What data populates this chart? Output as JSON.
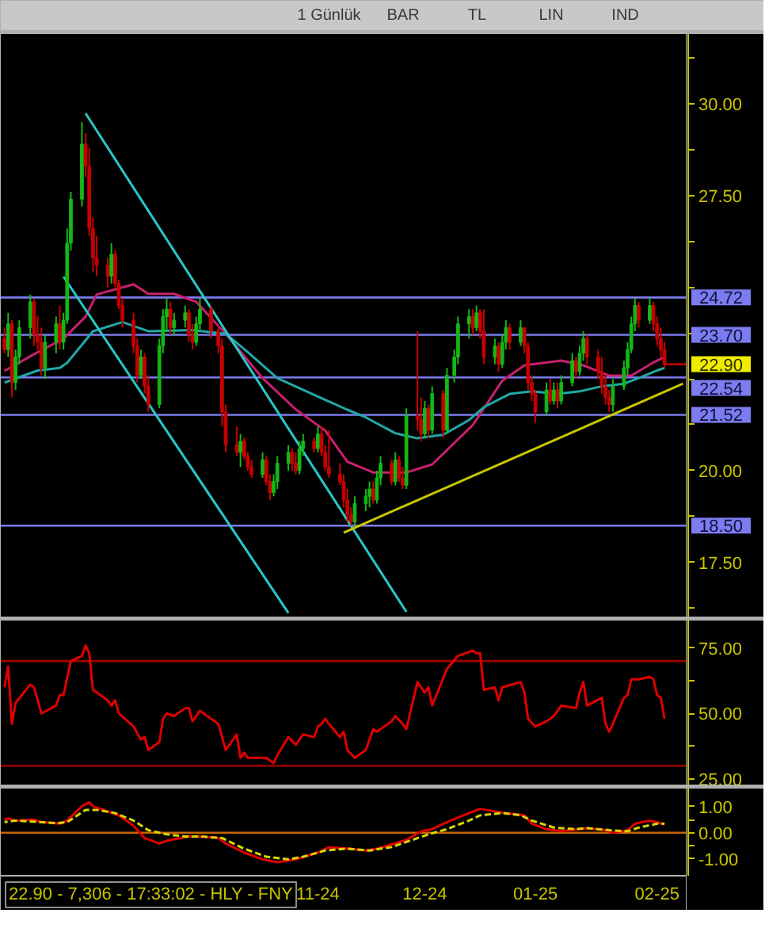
{
  "chart_data": [
    {
      "type": "other",
      "annotations": [
        "1 Günlük",
        "BAR",
        "TL",
        "LIN",
        "IND"
      ]
    },
    {
      "type": "candlestick",
      "x": [
        "2024-09-02",
        "2024-09-03",
        "2024-09-04",
        "2024-09-05",
        "2024-09-06",
        "2024-09-09",
        "2024-09-10",
        "2024-09-11",
        "2024-09-12",
        "2024-09-13",
        "2024-09-16",
        "2024-09-17",
        "2024-09-18",
        "2024-09-19",
        "2024-09-20",
        "2024-09-23",
        "2024-09-24",
        "2024-09-25",
        "2024-09-26",
        "2024-09-27",
        "2024-09-30",
        "2024-10-01",
        "2024-10-02",
        "2024-10-03",
        "2024-10-04",
        "2024-10-07",
        "2024-10-08",
        "2024-10-09",
        "2024-10-10",
        "2024-10-11",
        "2024-10-14",
        "2024-10-15",
        "2024-10-16",
        "2024-10-17",
        "2024-10-18",
        "2024-10-21",
        "2024-10-22",
        "2024-10-23",
        "2024-10-24",
        "2024-10-25",
        "2024-10-28",
        "2024-10-30",
        "2024-10-31",
        "2024-11-01",
        "2024-11-04",
        "2024-11-05",
        "2024-11-06",
        "2024-11-07",
        "2024-11-08",
        "2024-11-11",
        "2024-11-12",
        "2024-11-13",
        "2024-11-14",
        "2024-11-15",
        "2024-11-18",
        "2024-11-19",
        "2024-11-20",
        "2024-11-21",
        "2024-11-22",
        "2024-11-25",
        "2024-11-26",
        "2024-11-27",
        "2024-11-28",
        "2024-11-29",
        "2024-12-02",
        "2024-12-03",
        "2024-12-04",
        "2024-12-05",
        "2024-12-06",
        "2024-12-09",
        "2024-12-10",
        "2024-12-11",
        "2024-12-12",
        "2024-12-13",
        "2024-12-16",
        "2024-12-17",
        "2024-12-18",
        "2024-12-19",
        "2024-12-20",
        "2024-12-23",
        "2024-12-24",
        "2024-12-25",
        "2024-12-26",
        "2024-12-27",
        "2024-12-30",
        "2024-12-31",
        "2025-01-02",
        "2025-01-03",
        "2025-01-06",
        "2025-01-07",
        "2025-01-08",
        "2025-01-09",
        "2025-01-10",
        "2025-01-13",
        "2025-01-14",
        "2025-01-15",
        "2025-01-16",
        "2025-01-17",
        "2025-01-20",
        "2025-01-21",
        "2025-01-22",
        "2025-01-23",
        "2025-01-24",
        "2025-01-27",
        "2025-01-28",
        "2025-01-29",
        "2025-01-30",
        "2025-01-31",
        "2025-02-03",
        "2025-02-04",
        "2025-02-05",
        "2025-02-06",
        "2025-02-07",
        "2025-02-10",
        "2025-02-11",
        "2025-02-12",
        "2025-02-13",
        "2025-02-14",
        "2025-02-17",
        "2025-02-18",
        "2025-02-19",
        "2025-02-20",
        "2025-02-21",
        "2025-02-24",
        "2025-02-25",
        "2025-02-26",
        "2025-02-27",
        "2025-02-28"
      ],
      "ohlc": [
        [
          23.6,
          23.9,
          23.2,
          23.3
        ],
        [
          23.3,
          24.3,
          23.1,
          24.0
        ],
        [
          24.0,
          24.1,
          22.0,
          22.4
        ],
        [
          22.4,
          23.3,
          22.2,
          23.1
        ],
        [
          23.1,
          24.1,
          22.9,
          23.9
        ],
        [
          23.9,
          24.8,
          23.6,
          24.6
        ],
        [
          24.6,
          24.7,
          23.4,
          23.7
        ],
        [
          23.7,
          24.2,
          23.3,
          23.5
        ],
        [
          23.5,
          23.9,
          22.6,
          22.8
        ],
        [
          22.8,
          23.7,
          22.5,
          23.5
        ],
        [
          23.5,
          24.2,
          23.2,
          24.0
        ],
        [
          24.0,
          24.5,
          23.3,
          23.5
        ],
        [
          23.5,
          24.3,
          23.3,
          24.1
        ],
        [
          24.1,
          26.6,
          24.0,
          26.2
        ],
        [
          26.2,
          27.6,
          26.0,
          27.4
        ],
        [
          27.4,
          29.5,
          27.2,
          28.9
        ],
        [
          28.9,
          29.2,
          28.0,
          28.3
        ],
        [
          28.3,
          28.8,
          26.4,
          26.6
        ],
        [
          26.6,
          26.9,
          25.4,
          25.8
        ],
        [
          25.8,
          26.4,
          25.3,
          25.6
        ],
        [
          25.6,
          25.8,
          25.0,
          25.3
        ],
        [
          25.3,
          26.2,
          25.1,
          25.9
        ],
        [
          25.9,
          26.0,
          25.0,
          25.1
        ],
        [
          25.1,
          25.2,
          24.4,
          24.5
        ],
        [
          24.5,
          24.7,
          23.9,
          24.1
        ],
        [
          24.1,
          24.3,
          23.2,
          23.4
        ],
        [
          23.4,
          23.6,
          22.4,
          22.6
        ],
        [
          22.6,
          23.3,
          22.5,
          23.1
        ],
        [
          23.1,
          23.2,
          22.1,
          22.3
        ],
        [
          22.3,
          22.6,
          21.6,
          21.8
        ],
        [
          21.8,
          23.6,
          21.7,
          23.4
        ],
        [
          23.4,
          24.4,
          23.2,
          24.2
        ],
        [
          24.2,
          24.7,
          23.8,
          24.4
        ],
        [
          24.4,
          24.6,
          23.7,
          23.9
        ],
        [
          23.9,
          24.3,
          23.7,
          24.1
        ],
        [
          24.1,
          24.5,
          23.9,
          24.3
        ],
        [
          24.3,
          24.4,
          23.5,
          23.7
        ],
        [
          23.7,
          24.0,
          23.3,
          23.5
        ],
        [
          23.5,
          24.2,
          23.4,
          24.0
        ],
        [
          24.0,
          24.7,
          23.8,
          24.4
        ],
        [
          24.4,
          24.5,
          23.6,
          23.8
        ],
        [
          23.8,
          24.0,
          23.2,
          23.4
        ],
        [
          23.4,
          23.6,
          21.2,
          21.6
        ],
        [
          21.6,
          21.8,
          20.5,
          20.7
        ],
        [
          20.7,
          21.2,
          20.4,
          20.5
        ],
        [
          20.5,
          21.0,
          20.1,
          20.8
        ],
        [
          20.8,
          20.9,
          20.3,
          20.4
        ],
        [
          20.4,
          20.5,
          20.0,
          20.1
        ],
        [
          20.1,
          20.3,
          19.8,
          19.9
        ],
        [
          19.9,
          20.5,
          19.8,
          20.3
        ],
        [
          20.3,
          20.4,
          19.6,
          19.7
        ],
        [
          19.7,
          19.9,
          19.2,
          19.4
        ],
        [
          19.4,
          19.9,
          19.3,
          19.7
        ],
        [
          19.7,
          20.4,
          19.5,
          20.2
        ],
        [
          20.2,
          20.7,
          20.0,
          20.5
        ],
        [
          20.5,
          20.6,
          20.0,
          20.2
        ],
        [
          20.2,
          20.5,
          19.9,
          20.0
        ],
        [
          20.0,
          20.8,
          19.9,
          20.6
        ],
        [
          20.6,
          21.0,
          20.4,
          20.8
        ],
        [
          20.8,
          20.9,
          20.5,
          20.6
        ],
        [
          20.6,
          21.2,
          20.5,
          21.0
        ],
        [
          21.0,
          21.2,
          20.4,
          20.5
        ],
        [
          20.5,
          20.7,
          20.0,
          20.1
        ],
        [
          20.1,
          21.1,
          19.8,
          19.9
        ],
        [
          19.9,
          20.2,
          19.6,
          19.7
        ],
        [
          19.7,
          19.9,
          19.0,
          19.2
        ],
        [
          19.2,
          19.5,
          18.6,
          18.8
        ],
        [
          18.8,
          19.0,
          18.5,
          18.6
        ],
        [
          18.6,
          19.3,
          18.5,
          19.1
        ],
        [
          19.1,
          19.5,
          18.9,
          19.3
        ],
        [
          19.3,
          19.7,
          19.0,
          19.5
        ],
        [
          19.5,
          19.7,
          19.1,
          19.2
        ],
        [
          19.2,
          20.0,
          19.1,
          19.8
        ],
        [
          19.8,
          20.4,
          19.6,
          20.2
        ],
        [
          20.2,
          20.3,
          19.6,
          19.7
        ],
        [
          19.7,
          20.5,
          19.6,
          20.3
        ],
        [
          20.3,
          20.4,
          19.7,
          19.8
        ],
        [
          19.8,
          20.1,
          19.5,
          19.6
        ],
        [
          19.6,
          21.7,
          19.5,
          21.5
        ],
        [
          21.5,
          23.8,
          21.1,
          21.4
        ],
        [
          21.4,
          22.0,
          20.8,
          21.0
        ],
        [
          21.0,
          21.9,
          20.9,
          21.7
        ],
        [
          21.7,
          21.8,
          20.9,
          21.1
        ],
        [
          21.1,
          22.3,
          21.0,
          22.1
        ],
        [
          22.1,
          22.2,
          20.9,
          21.1
        ],
        [
          21.1,
          22.8,
          21.0,
          22.6
        ],
        [
          22.6,
          23.3,
          22.4,
          23.1
        ],
        [
          23.1,
          24.2,
          22.9,
          24.0
        ],
        [
          24.0,
          24.4,
          23.6,
          24.2
        ],
        [
          24.2,
          24.4,
          23.7,
          23.9
        ],
        [
          23.9,
          24.5,
          23.8,
          24.3
        ],
        [
          24.3,
          24.4,
          23.6,
          23.8
        ],
        [
          23.8,
          24.4,
          22.9,
          23.1
        ],
        [
          23.1,
          23.6,
          22.9,
          23.4
        ],
        [
          23.4,
          23.5,
          22.7,
          22.9
        ],
        [
          22.9,
          23.7,
          22.8,
          23.5
        ],
        [
          23.5,
          24.1,
          23.3,
          23.9
        ],
        [
          23.9,
          24.0,
          23.3,
          23.5
        ],
        [
          23.5,
          24.1,
          23.4,
          23.9
        ],
        [
          23.9,
          23.9,
          23.2,
          23.4
        ],
        [
          23.4,
          23.5,
          22.2,
          22.4
        ],
        [
          22.4,
          22.6,
          21.9,
          22.1
        ],
        [
          22.1,
          22.2,
          21.3,
          21.6
        ],
        [
          21.6,
          22.4,
          21.5,
          22.2
        ],
        [
          22.2,
          22.5,
          21.8,
          21.9
        ],
        [
          21.9,
          22.4,
          21.8,
          22.2
        ],
        [
          22.2,
          22.4,
          21.7,
          21.9
        ],
        [
          21.9,
          22.6,
          21.8,
          22.4
        ],
        [
          22.4,
          23.2,
          22.3,
          23.0
        ],
        [
          23.0,
          23.1,
          22.5,
          22.7
        ],
        [
          22.7,
          23.4,
          22.6,
          23.2
        ],
        [
          23.2,
          23.8,
          23.0,
          23.6
        ],
        [
          23.6,
          23.7,
          22.9,
          23.1
        ],
        [
          23.1,
          23.3,
          22.5,
          22.7
        ],
        [
          22.7,
          23.1,
          22.1,
          22.3
        ],
        [
          22.3,
          22.6,
          21.8,
          22.0
        ],
        [
          22.0,
          22.2,
          21.6,
          21.8
        ],
        [
          21.8,
          22.5,
          21.6,
          22.3
        ],
        [
          22.3,
          23.0,
          22.2,
          22.8
        ],
        [
          22.8,
          23.5,
          22.6,
          23.3
        ],
        [
          23.3,
          24.2,
          23.2,
          24.0
        ],
        [
          24.0,
          24.7,
          23.8,
          24.5
        ],
        [
          24.5,
          24.6,
          23.9,
          24.1
        ],
        [
          24.1,
          24.7,
          24.0,
          24.5
        ],
        [
          24.5,
          24.6,
          23.8,
          24.0
        ],
        [
          24.0,
          24.2,
          23.4,
          23.6
        ],
        [
          23.6,
          23.9,
          23.1,
          23.3
        ],
        [
          23.3,
          23.5,
          22.8,
          22.9
        ]
      ],
      "series": [
        {
          "type": "line",
          "color": "#c8206e",
          "x": [
            "2024-09-02",
            "2024-09-11",
            "2024-09-18",
            "2024-09-24",
            "2024-09-27",
            "2024-10-07",
            "2024-10-11",
            "2024-10-18",
            "2024-10-24",
            "2024-11-01",
            "2024-11-11",
            "2024-11-20",
            "2024-11-28",
            "2024-12-04",
            "2024-12-11",
            "2024-12-20",
            "2024-12-27",
            "2025-01-07",
            "2025-01-15",
            "2025-01-21",
            "2025-01-31",
            "2025-02-06",
            "2025-02-13",
            "2025-02-19",
            "2025-02-25",
            "2025-02-28"
          ],
          "values": [
            22.72,
            23.23,
            23.59,
            24.2,
            24.8,
            25.08,
            24.82,
            24.82,
            24.6,
            23.73,
            22.52,
            21.67,
            21.09,
            20.24,
            19.95,
            19.95,
            20.17,
            21.24,
            22.45,
            22.87,
            23.0,
            22.87,
            22.59,
            22.59,
            22.95,
            23.1
          ]
        },
        {
          "type": "line",
          "color": "#20a8a8",
          "x": [
            "2024-09-02",
            "2024-09-11",
            "2024-09-17",
            "2024-09-19",
            "2024-09-26",
            "2024-10-04",
            "2024-10-11",
            "2024-10-23",
            "2024-11-01",
            "2024-11-07",
            "2024-11-15",
            "2024-11-26",
            "2024-12-04",
            "2024-12-09",
            "2024-12-17",
            "2024-12-23",
            "2024-12-30",
            "2025-01-06",
            "2025-01-10",
            "2025-01-17",
            "2025-01-23",
            "2025-01-30",
            "2025-02-05",
            "2025-02-11",
            "2025-02-17",
            "2025-02-21",
            "2025-02-26",
            "2025-02-28"
          ],
          "values": [
            22.4,
            22.73,
            22.8,
            22.94,
            23.8,
            24.05,
            23.8,
            23.83,
            23.73,
            23.23,
            22.52,
            22.02,
            21.66,
            21.45,
            21.02,
            20.88,
            20.98,
            21.38,
            21.73,
            22.09,
            22.16,
            22.09,
            22.16,
            22.3,
            22.37,
            22.52,
            22.73,
            22.8
          ]
        },
        {
          "type": "line",
          "color": "#28c8c8",
          "x": [
            "2024-09-24",
            "2024-12-20"
          ],
          "values": [
            29.74,
            16.15
          ]
        },
        {
          "type": "line",
          "color": "#28c8c8",
          "x": [
            "2024-09-18",
            "2024-11-18"
          ],
          "values": [
            25.29,
            16.12
          ]
        },
        {
          "type": "line",
          "color": "#c8c800",
          "x": [
            "2024-12-03",
            "2025-03-05"
          ],
          "values": [
            18.31,
            22.37
          ]
        }
      ],
      "xlim": [
        "2024-09-01",
        "2025-03-06"
      ],
      "ylim": [
        16,
        31.9
      ],
      "yticks": [
        {
          "value": 16.25,
          "label": null
        },
        {
          "value": 17.5,
          "label": "17.50"
        },
        {
          "value": 18.75,
          "label": null
        },
        {
          "value": 20,
          "label": "20.00"
        },
        {
          "value": 21.25,
          "label": null
        },
        {
          "value": 22.5,
          "label": null
        },
        {
          "value": 23.75,
          "label": null
        },
        {
          "value": 25,
          "label": null
        },
        {
          "value": 26.25,
          "label": null
        },
        {
          "value": 27.5,
          "label": "27.50"
        },
        {
          "value": 28.75,
          "label": null
        },
        {
          "value": 30,
          "label": "30.00"
        },
        {
          "value": 31.25,
          "label": null
        }
      ],
      "tick_labels": "y",
      "ref_lines": [
        {
          "axis": "y",
          "value": 24.72,
          "label": "24.72",
          "color": "#7c7cf0"
        },
        {
          "axis": "y",
          "value": 23.7,
          "label": "23.70",
          "color": "#7c7cf0"
        },
        {
          "axis": "y",
          "value": 22.54,
          "label": "22.54",
          "color": "#7c7cf0"
        },
        {
          "axis": "y",
          "value": 21.52,
          "label": "21.52",
          "color": "#7c7cf0"
        },
        {
          "axis": "y",
          "value": 18.5,
          "label": "18.50",
          "color": "#7c7cf0"
        }
      ],
      "annotations": [
        {
          "text": "22.90",
          "x": "2025-02-28",
          "y": 22.9
        }
      ]
    },
    {
      "type": "line",
      "series": [
        {
          "color": "#e00000",
          "x": [
            "2024-09-02",
            "2024-09-03",
            "2024-09-04",
            "2024-09-05",
            "2024-09-09",
            "2024-09-10",
            "2024-09-12",
            "2024-09-16",
            "2024-09-17",
            "2024-09-18",
            "2024-09-20",
            "2024-09-23",
            "2024-09-24",
            "2024-09-25",
            "2024-09-26",
            "2024-09-30",
            "2024-10-01",
            "2024-10-02",
            "2024-10-03",
            "2024-10-07",
            "2024-10-09",
            "2024-10-10",
            "2024-10-11",
            "2024-10-14",
            "2024-10-15",
            "2024-10-16",
            "2024-10-18",
            "2024-10-21",
            "2024-10-22",
            "2024-10-23",
            "2024-10-25",
            "2024-10-28",
            "2024-10-30",
            "2024-11-01",
            "2024-11-04",
            "2024-11-05",
            "2024-11-06",
            "2024-11-07",
            "2024-11-11",
            "2024-11-12",
            "2024-11-14",
            "2024-11-15",
            "2024-11-18",
            "2024-11-20",
            "2024-11-22",
            "2024-11-25",
            "2024-11-26",
            "2024-11-27",
            "2024-11-28",
            "2024-11-29",
            "2024-12-02",
            "2024-12-03",
            "2024-12-04",
            "2024-12-06",
            "2024-12-09",
            "2024-12-11",
            "2024-12-12",
            "2024-12-16",
            "2024-12-17",
            "2024-12-19",
            "2024-12-20",
            "2024-12-23",
            "2024-12-25",
            "2024-12-26",
            "2024-12-27",
            "2024-12-31",
            "2025-01-03",
            "2025-01-07",
            "2025-01-08",
            "2025-01-09",
            "2025-01-10",
            "2025-01-13",
            "2025-01-14",
            "2025-01-15",
            "2025-01-20",
            "2025-01-21",
            "2025-01-22",
            "2025-01-24",
            "2025-01-27",
            "2025-01-29",
            "2025-01-31",
            "2025-02-04",
            "2025-02-05",
            "2025-02-06",
            "2025-02-07",
            "2025-02-11",
            "2025-02-12",
            "2025-02-13",
            "2025-02-14",
            "2025-02-17",
            "2025-02-18",
            "2025-02-19",
            "2025-02-21",
            "2025-02-24",
            "2025-02-25",
            "2025-02-26",
            "2025-02-27",
            "2025-02-28"
          ],
          "values": [
            60,
            68,
            46,
            54,
            61,
            60,
            50,
            53,
            57,
            57,
            70,
            72,
            76,
            73,
            59,
            55,
            53,
            55,
            50,
            45,
            40,
            41,
            36,
            39,
            48,
            50,
            49,
            52,
            52,
            47,
            51,
            48,
            46,
            36,
            42,
            33,
            35,
            33,
            33,
            33,
            31,
            34,
            41,
            38,
            42,
            41,
            45,
            46,
            48,
            46,
            41,
            43,
            36,
            33,
            36,
            44,
            43,
            47,
            49,
            46,
            44,
            62,
            58,
            60,
            53,
            67,
            72,
            74,
            73,
            73,
            59,
            60,
            55,
            60,
            62,
            58,
            48,
            45,
            47,
            49,
            53,
            52,
            58,
            62,
            53,
            56,
            46,
            43,
            46,
            56,
            57,
            63,
            63,
            64,
            63,
            57,
            56,
            48
          ]
        }
      ],
      "xlim": [
        "2024-09-01",
        "2025-03-06"
      ],
      "ylim": [
        22.5,
        85.5
      ],
      "yticks": [
        {
          "value": 25,
          "label": "25.00"
        },
        {
          "value": 37.5,
          "label": null
        },
        {
          "value": 50,
          "label": "50.00"
        },
        {
          "value": 62.5,
          "label": null
        },
        {
          "value": 75,
          "label": "75.00"
        }
      ],
      "tick_labels": "y",
      "ref_lines": [
        {
          "axis": "y",
          "value": 70,
          "color": "#a00000"
        },
        {
          "axis": "y",
          "value": 30,
          "color": "#a00000"
        }
      ]
    },
    {
      "type": "line",
      "series": [
        {
          "color": "#e00000",
          "x": [
            "2024-09-02",
            "2024-09-03",
            "2024-09-05",
            "2024-09-10",
            "2024-09-12",
            "2024-09-17",
            "2024-09-19",
            "2024-09-23",
            "2024-09-25",
            "2024-09-26",
            "2024-09-30",
            "2024-10-03",
            "2024-10-07",
            "2024-10-10",
            "2024-10-14",
            "2024-10-16",
            "2024-10-18",
            "2024-10-22",
            "2024-10-25",
            "2024-10-30",
            "2024-11-01",
            "2024-11-06",
            "2024-11-11",
            "2024-11-15",
            "2024-11-20",
            "2024-11-26",
            "2024-11-29",
            "2024-12-04",
            "2024-12-09",
            "2024-12-12",
            "2024-12-17",
            "2024-12-20",
            "2024-12-24",
            "2024-12-27",
            "2024-12-31",
            "2025-01-06",
            "2025-01-09",
            "2025-01-13",
            "2025-01-16",
            "2025-01-21",
            "2025-01-23",
            "2025-01-27",
            "2025-01-31",
            "2025-02-05",
            "2025-02-07",
            "2025-02-12",
            "2025-02-14",
            "2025-02-18",
            "2025-02-20",
            "2025-02-24",
            "2025-02-26",
            "2025-02-28"
          ],
          "values": [
            0.51,
            0.55,
            0.47,
            0.51,
            0.41,
            0.35,
            0.47,
            1.02,
            1.17,
            1.02,
            0.82,
            0.67,
            0.27,
            -0.2,
            -0.41,
            -0.31,
            -0.25,
            -0.14,
            -0.14,
            -0.2,
            -0.41,
            -0.76,
            -1.02,
            -1.13,
            -1.02,
            -0.76,
            -0.55,
            -0.61,
            -0.68,
            -0.61,
            -0.41,
            -0.27,
            0.06,
            0.14,
            0.41,
            0.76,
            0.92,
            0.82,
            0.76,
            0.67,
            0.35,
            0.14,
            0.06,
            0.14,
            0.18,
            0.1,
            0.0,
            0.1,
            0.35,
            0.47,
            0.41,
            0.31
          ]
        },
        {
          "color": "#d8d800",
          "line_style": "dashed",
          "x": [
            "2024-09-02",
            "2024-09-05",
            "2024-09-10",
            "2024-09-16",
            "2024-09-19",
            "2024-09-24",
            "2024-09-27",
            "2024-10-02",
            "2024-10-07",
            "2024-10-11",
            "2024-10-16",
            "2024-10-21",
            "2024-10-25",
            "2024-10-31",
            "2024-11-06",
            "2024-11-12",
            "2024-11-18",
            "2024-11-22",
            "2024-11-28",
            "2024-12-04",
            "2024-12-10",
            "2024-12-16",
            "2024-12-20",
            "2024-12-26",
            "2024-12-31",
            "2025-01-06",
            "2025-01-09",
            "2025-01-15",
            "2025-01-20",
            "2025-01-23",
            "2025-01-29",
            "2025-02-04",
            "2025-02-07",
            "2025-02-13",
            "2025-02-18",
            "2025-02-21",
            "2025-02-26",
            "2025-02-28"
          ],
          "values": [
            0.41,
            0.47,
            0.43,
            0.37,
            0.41,
            0.88,
            0.88,
            0.76,
            0.47,
            0.1,
            -0.06,
            -0.14,
            -0.14,
            -0.2,
            -0.61,
            -0.92,
            -1.02,
            -0.92,
            -0.68,
            -0.61,
            -0.68,
            -0.55,
            -0.35,
            -0.06,
            0.14,
            0.47,
            0.67,
            0.76,
            0.67,
            0.47,
            0.2,
            0.14,
            0.18,
            0.1,
            0.06,
            0.2,
            0.35,
            0.35
          ]
        }
      ],
      "xlim": [
        "2024-09-01",
        "2025-03-06"
      ],
      "ylim": [
        -1.65,
        1.7
      ],
      "yticks": [
        {
          "value": -1,
          "label": "-1.00"
        },
        {
          "value": -0.5,
          "label": null
        },
        {
          "value": 0,
          "label": "0.00"
        },
        {
          "value": 0.5,
          "label": null
        },
        {
          "value": 1,
          "label": "1.00"
        }
      ],
      "xticks": [
        {
          "value": "2024-11-26",
          "label": "11-24"
        },
        {
          "value": "2024-12-25",
          "label": "12-24"
        },
        {
          "value": "2025-01-24",
          "label": "01-25"
        },
        {
          "value": "2025-02-26",
          "label": "02-25"
        }
      ],
      "ref_lines": [
        {
          "axis": "y",
          "value": 0,
          "color": "#c86400"
        }
      ],
      "annotations": [
        "22.90 - 7,306 - 17:33:02 - HLY - FNY"
      ]
    }
  ]
}
